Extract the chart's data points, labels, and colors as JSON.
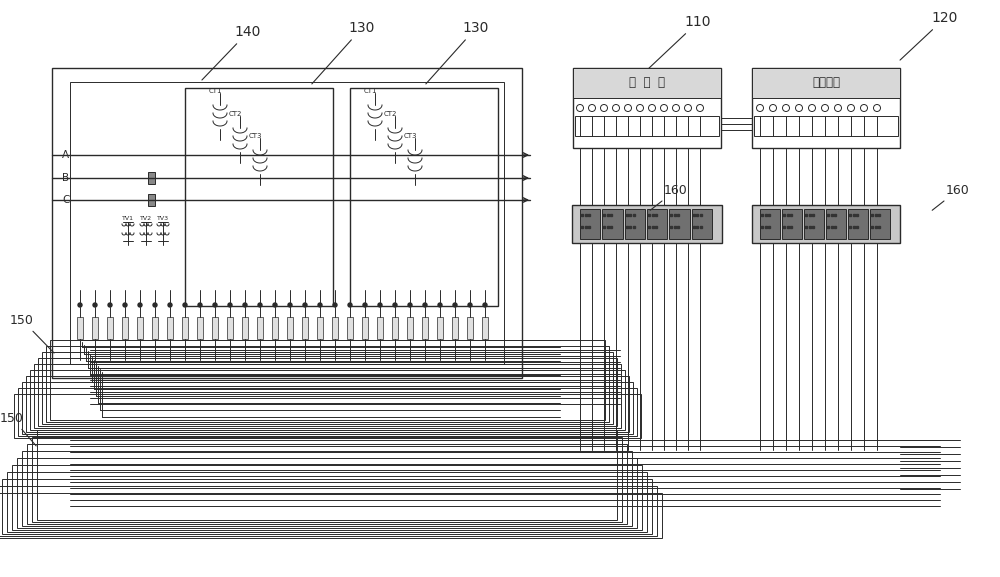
{
  "bg_color": "#ffffff",
  "lc": "#2a2a2a",
  "label_140": "140",
  "label_130a": "130",
  "label_130b": "130",
  "label_110": "110",
  "label_120": "120",
  "label_150a": "150",
  "label_150b": "150",
  "label_160a": "160",
  "label_160b": "160",
  "text_A": "A",
  "text_B": "B",
  "text_C": "C",
  "text_dnb": "电  能  表",
  "text_fkzd": "负控件端",
  "text_CT1": "CT1",
  "text_CT2": "CT2",
  "text_CT3": "CT3",
  "text_TV1": "TV1",
  "text_TV2": "TV2",
  "text_TV3": "TV3"
}
